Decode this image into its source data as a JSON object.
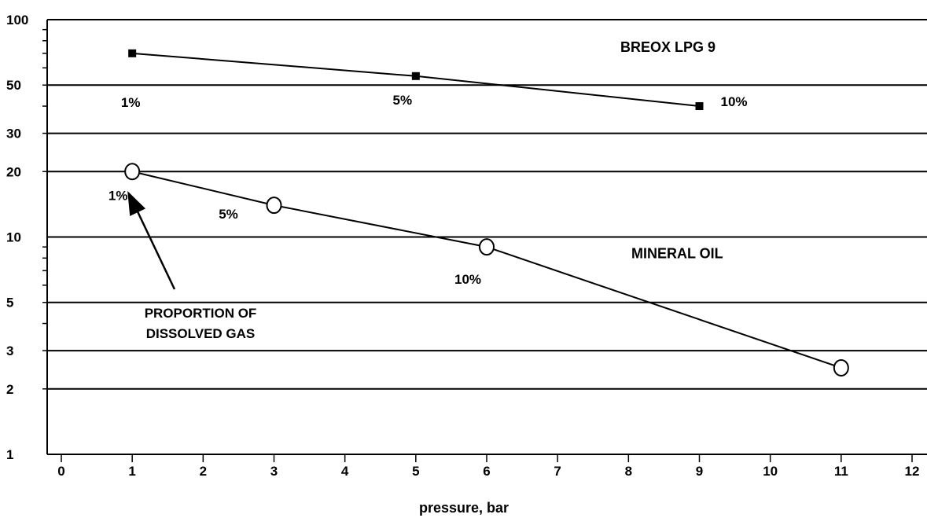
{
  "chart_data": {
    "type": "line",
    "title": "",
    "xlabel": "pressure, bar",
    "ylabel": "",
    "xlim": [
      0,
      12
    ],
    "ylim": [
      1,
      100
    ],
    "yscale": "log",
    "x_ticks": [
      "0",
      "1",
      "2",
      "3",
      "4",
      "5",
      "6",
      "7",
      "8",
      "9",
      "10",
      "11",
      "12"
    ],
    "y_ticks": [
      "100",
      "50",
      "30",
      "20",
      "10",
      "5",
      "3",
      "2",
      "1"
    ],
    "y_tick_values": [
      100,
      50,
      30,
      20,
      10,
      5,
      3,
      2,
      1
    ],
    "gridlines_y": [
      50,
      30,
      20,
      10,
      5,
      3,
      2
    ],
    "grid": true,
    "series": [
      {
        "name": "BREOX LPG 9",
        "marker": "square",
        "color": "#000000",
        "points": [
          {
            "x": 1,
            "y": 70,
            "label": "1%"
          },
          {
            "x": 5,
            "y": 55,
            "label": "5%"
          },
          {
            "x": 9,
            "y": 40,
            "label": "10%"
          }
        ]
      },
      {
        "name": "MINERAL OIL",
        "marker": "circle",
        "color": "#000000",
        "points": [
          {
            "x": 1,
            "y": 20,
            "label": "1%"
          },
          {
            "x": 3,
            "y": 14,
            "label": "5%"
          },
          {
            "x": 6,
            "y": 9,
            "label": "10%"
          },
          {
            "x": 11,
            "y": 2.5,
            "label": ""
          }
        ]
      }
    ],
    "annotations": [
      {
        "text_lines": [
          "PROPORTION OF",
          "DISSOLVED GAS"
        ],
        "arrow_to": {
          "x": 1,
          "y": 16
        }
      }
    ]
  }
}
